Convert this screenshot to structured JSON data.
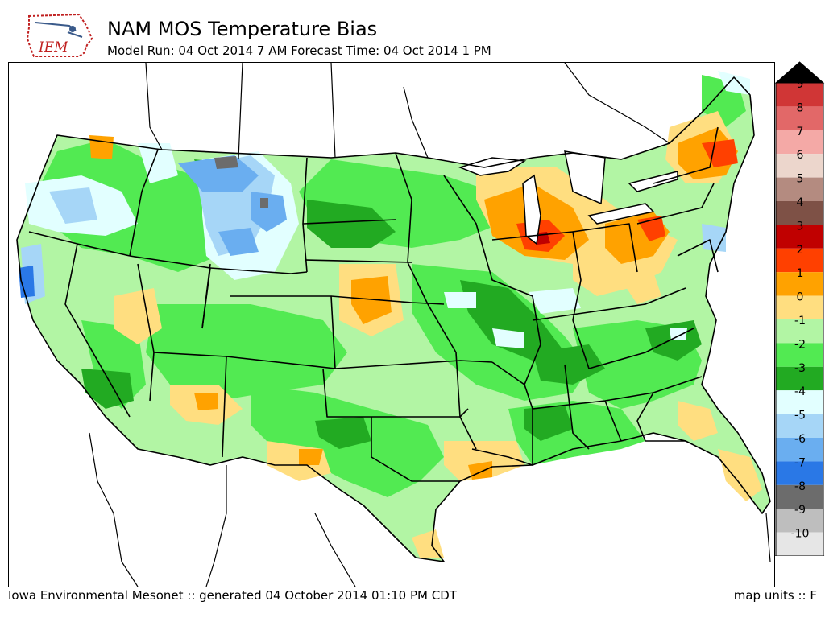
{
  "header": {
    "title": "NAM MOS Temperature Bias",
    "subtitle": "Model Run: 04 Oct 2014 7 AM Forecast Time: 04 Oct 2014 1 PM",
    "logo_text": "IEM"
  },
  "legend": {
    "levels": [
      {
        "label": "9",
        "color": "#d03636"
      },
      {
        "label": "8",
        "color": "#e26868"
      },
      {
        "label": "7",
        "color": "#f4a9a6"
      },
      {
        "label": "6",
        "color": "#ecd6cc"
      },
      {
        "label": "5",
        "color": "#b48b80"
      },
      {
        "label": "4",
        "color": "#7e5146"
      },
      {
        "label": "3",
        "color": "#c00000"
      },
      {
        "label": "2",
        "color": "#ff4000"
      },
      {
        "label": "1",
        "color": "#ffa200"
      },
      {
        "label": "0",
        "color": "#ffde80"
      },
      {
        "label": "-1",
        "color": "#b2f5a4"
      },
      {
        "label": "-2",
        "color": "#52ea52"
      },
      {
        "label": "-3",
        "color": "#22aa22"
      },
      {
        "label": "-4",
        "color": "#e2ffff"
      },
      {
        "label": "-5",
        "color": "#a6d6f7"
      },
      {
        "label": "-6",
        "color": "#6aaef0"
      },
      {
        "label": "-7",
        "color": "#2a78e6"
      },
      {
        "label": "-8",
        "color": "#6c6c6c"
      },
      {
        "label": "-9",
        "color": "#bebebe"
      },
      {
        "label": "-10",
        "color": "#e6e6e6"
      }
    ],
    "over_color": "#000000",
    "under_color": "#ffffff"
  },
  "footer": {
    "left": "Iowa Environmental Mesonet :: generated 04 October 2014 01:10 PM CDT",
    "right": "map units :: F"
  }
}
